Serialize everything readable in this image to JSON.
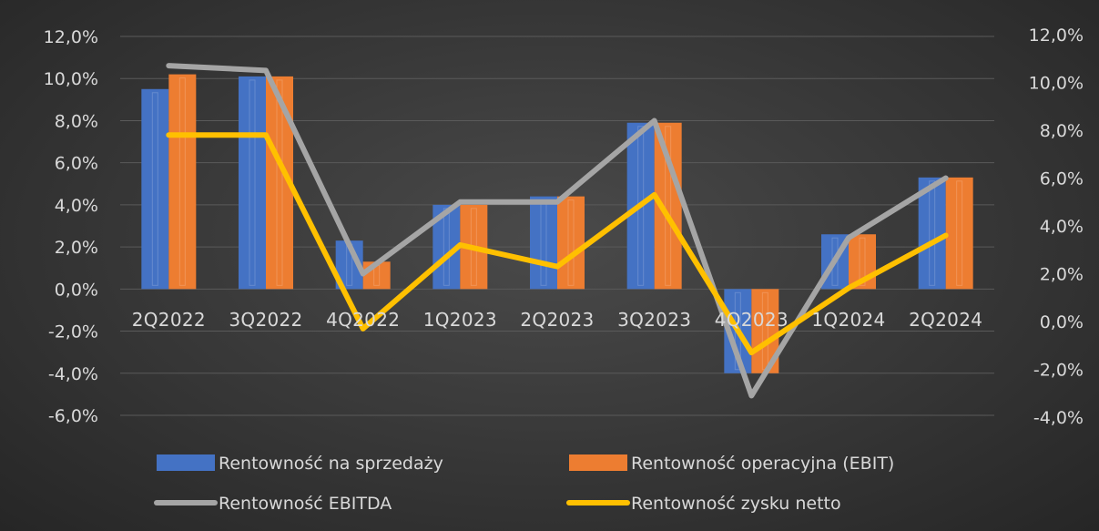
{
  "chart_data": {
    "type": "bar",
    "categories": [
      "2Q2022",
      "3Q2022",
      "4Q2022",
      "1Q2023",
      "2Q2023",
      "3Q2023",
      "4Q2023",
      "1Q2024",
      "2Q2024"
    ],
    "left_axis": {
      "ylim": [
        -6,
        12
      ],
      "ticks": [
        "12,0%",
        "10,0%",
        "8,0%",
        "6,0%",
        "4,0%",
        "2,0%",
        "0,0%",
        "-2,0%",
        "-4,0%",
        "-6,0%"
      ]
    },
    "right_axis": {
      "ylim": [
        -4,
        12
      ],
      "ticks": [
        "12,0%",
        "10,0%",
        "8,0%",
        "6,0%",
        "4,0%",
        "2,0%",
        "0,0%",
        "-2,0%",
        "-4,0%"
      ]
    },
    "grid": true,
    "legend_position": "bottom",
    "series": [
      {
        "name": "Rentowność na sprzedaży",
        "kind": "bar",
        "axis": "left",
        "color": "#4472c4",
        "values": [
          9.5,
          10.1,
          2.3,
          4.0,
          4.4,
          7.9,
          -4.0,
          2.6,
          5.3
        ]
      },
      {
        "name": "Rentowność operacyjna (EBIT)",
        "kind": "bar",
        "axis": "left",
        "color": "#ed7d31",
        "values": [
          10.2,
          10.1,
          1.3,
          4.0,
          4.4,
          7.9,
          -4.0,
          2.6,
          5.3
        ]
      },
      {
        "name": "Rentowność EBITDA",
        "kind": "line",
        "axis": "right",
        "color": "#a5a5a5",
        "values": [
          10.7,
          10.5,
          2.0,
          5.0,
          5.0,
          8.4,
          -3.1,
          3.5,
          6.0
        ]
      },
      {
        "name": "Rentowność zysku netto",
        "kind": "line",
        "axis": "right",
        "color": "#ffc000",
        "values": [
          7.8,
          7.8,
          -0.3,
          3.2,
          2.3,
          5.3,
          -1.3,
          1.4,
          3.6
        ]
      }
    ]
  }
}
